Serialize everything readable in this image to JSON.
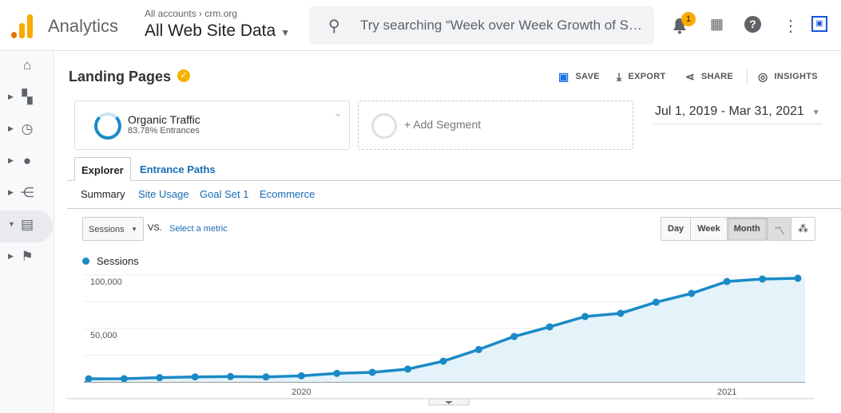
{
  "header": {
    "app_title": "Analytics",
    "account_path": "All accounts › crm.org",
    "view_name": "All Web Site Data",
    "search_placeholder": "Try searching “Week over Week Growth of Sessions”",
    "notification_count": "1"
  },
  "sidebar": {
    "items": [
      {
        "icon": "home-icon"
      },
      {
        "icon": "customization-icon"
      },
      {
        "icon": "realtime-clock-icon"
      },
      {
        "icon": "audience-person-icon"
      },
      {
        "icon": "acquisition-icon"
      },
      {
        "icon": "behavior-icon",
        "active": true
      },
      {
        "icon": "conversions-flag-icon"
      }
    ]
  },
  "page": {
    "title": "Landing Pages",
    "actions": {
      "save": "SAVE",
      "export": "EXPORT",
      "share": "SHARE",
      "insights": "INSIGHTS"
    },
    "segment": {
      "name": "Organic Traffic",
      "detail": "83.78% Entrances",
      "share": 0.8378
    },
    "add_segment": "+ Add Segment",
    "date_range": "Jul 1, 2019 - Mar 31, 2021",
    "tabs": [
      "Explorer",
      "Entrance Paths"
    ],
    "subtabs": [
      "Summary",
      "Site Usage",
      "Goal Set 1",
      "Ecommerce"
    ],
    "metric": "Sessions",
    "vs": "VS.",
    "select_metric": "Select a metric",
    "granularity": [
      "Day",
      "Week",
      "Month"
    ],
    "granularity_selected": "Month"
  },
  "colors": {
    "accent": "#1a8ac6",
    "fill": "#e4f2f9",
    "brand_orange": "#f9ab00"
  },
  "chart_data": {
    "type": "area",
    "series": [
      {
        "name": "Sessions",
        "values": [
          2900,
          3000,
          4000,
          4700,
          5000,
          4700,
          5700,
          8000,
          9000,
          12000,
          19400,
          30300,
          42500,
          51500,
          61200,
          64200,
          74600,
          82800,
          94000,
          96300,
          97000
        ]
      }
    ],
    "x": [
      "2019-07",
      "2019-08",
      "2019-09",
      "2019-10",
      "2019-11",
      "2019-12",
      "2020-01",
      "2020-02",
      "2020-03",
      "2020-04",
      "2020-05",
      "2020-06",
      "2020-07",
      "2020-08",
      "2020-09",
      "2020-10",
      "2020-11",
      "2020-12",
      "2021-01",
      "2021-02",
      "2021-03"
    ],
    "x_tick_labels": [
      {
        "at": "2020-01",
        "label": "2020"
      },
      {
        "at": "2021-01",
        "label": "2021"
      }
    ],
    "y_tick_labels": [
      "100,000",
      "50,000"
    ],
    "ylim": [
      0,
      100000
    ],
    "grid": true,
    "legend": "top-left"
  }
}
